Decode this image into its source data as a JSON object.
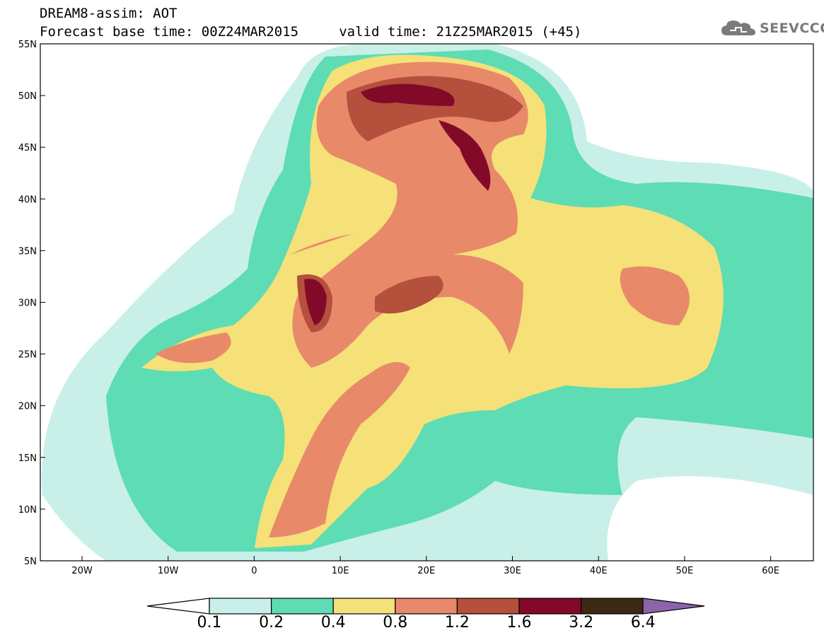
{
  "header": {
    "line1": "DREAM8-assim: AOT",
    "line2": "Forecast base time: 00Z24MAR2015     valid time: 21Z25MAR2015 (+45)"
  },
  "logo": {
    "text": "SEEVCCC",
    "icon": "cloud-icon"
  },
  "map": {
    "lon_labels": [
      "20W",
      "10W",
      "0",
      "10E",
      "20E",
      "30E",
      "40E",
      "50E",
      "60E"
    ],
    "lat_labels": [
      "55N",
      "50N",
      "45N",
      "40N",
      "35N",
      "30N",
      "25N",
      "20N",
      "15N",
      "10N",
      "5N"
    ]
  },
  "colorbar": {
    "labels": [
      "0.1",
      "0.2",
      "0.4",
      "0.8",
      "1.2",
      "1.6",
      "3.2",
      "6.4"
    ],
    "colors": [
      "#c8f0e8",
      "#5edcb4",
      "#f5e178",
      "#e8896a",
      "#b4503c",
      "#820a28",
      "#3c2814",
      "#8c64aa"
    ]
  }
}
